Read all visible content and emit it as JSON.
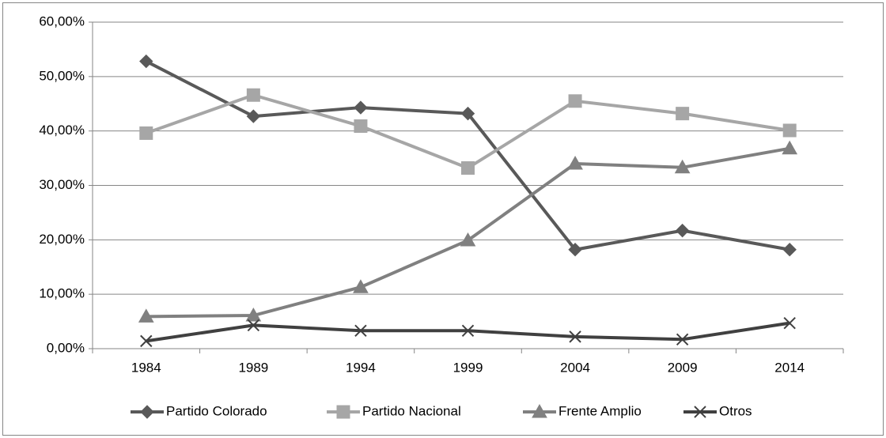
{
  "chart_data": {
    "type": "line",
    "categories": [
      "1984",
      "1989",
      "1994",
      "1999",
      "2004",
      "2009",
      "2014"
    ],
    "series": [
      {
        "name": "Partido Colorado",
        "color": "#595959",
        "marker": "diamond",
        "values": [
          52.8,
          42.7,
          44.3,
          43.2,
          18.2,
          21.7,
          18.2
        ]
      },
      {
        "name": "Partido Nacional",
        "color": "#a6a6a6",
        "marker": "square",
        "values": [
          39.6,
          46.6,
          40.9,
          33.2,
          45.5,
          43.2,
          40.1
        ]
      },
      {
        "name": "Frente Amplio",
        "color": "#808080",
        "marker": "triangle",
        "values": [
          5.9,
          6.1,
          11.3,
          19.9,
          34.0,
          33.3,
          36.8
        ]
      },
      {
        "name": "Otros",
        "color": "#404040",
        "marker": "x",
        "values": [
          1.4,
          4.3,
          3.3,
          3.3,
          2.2,
          1.7,
          4.7
        ]
      }
    ],
    "ylim": [
      0,
      60
    ],
    "yticks": [
      {
        "value": 0,
        "label": "0,00%"
      },
      {
        "value": 10,
        "label": "10,00%"
      },
      {
        "value": 20,
        "label": "20,00%"
      },
      {
        "value": 30,
        "label": "30,00%"
      },
      {
        "value": 40,
        "label": "40,00%"
      },
      {
        "value": 50,
        "label": "50,00%"
      },
      {
        "value": 60,
        "label": "60,00%"
      }
    ],
    "grid": true,
    "legend": "bottom"
  }
}
